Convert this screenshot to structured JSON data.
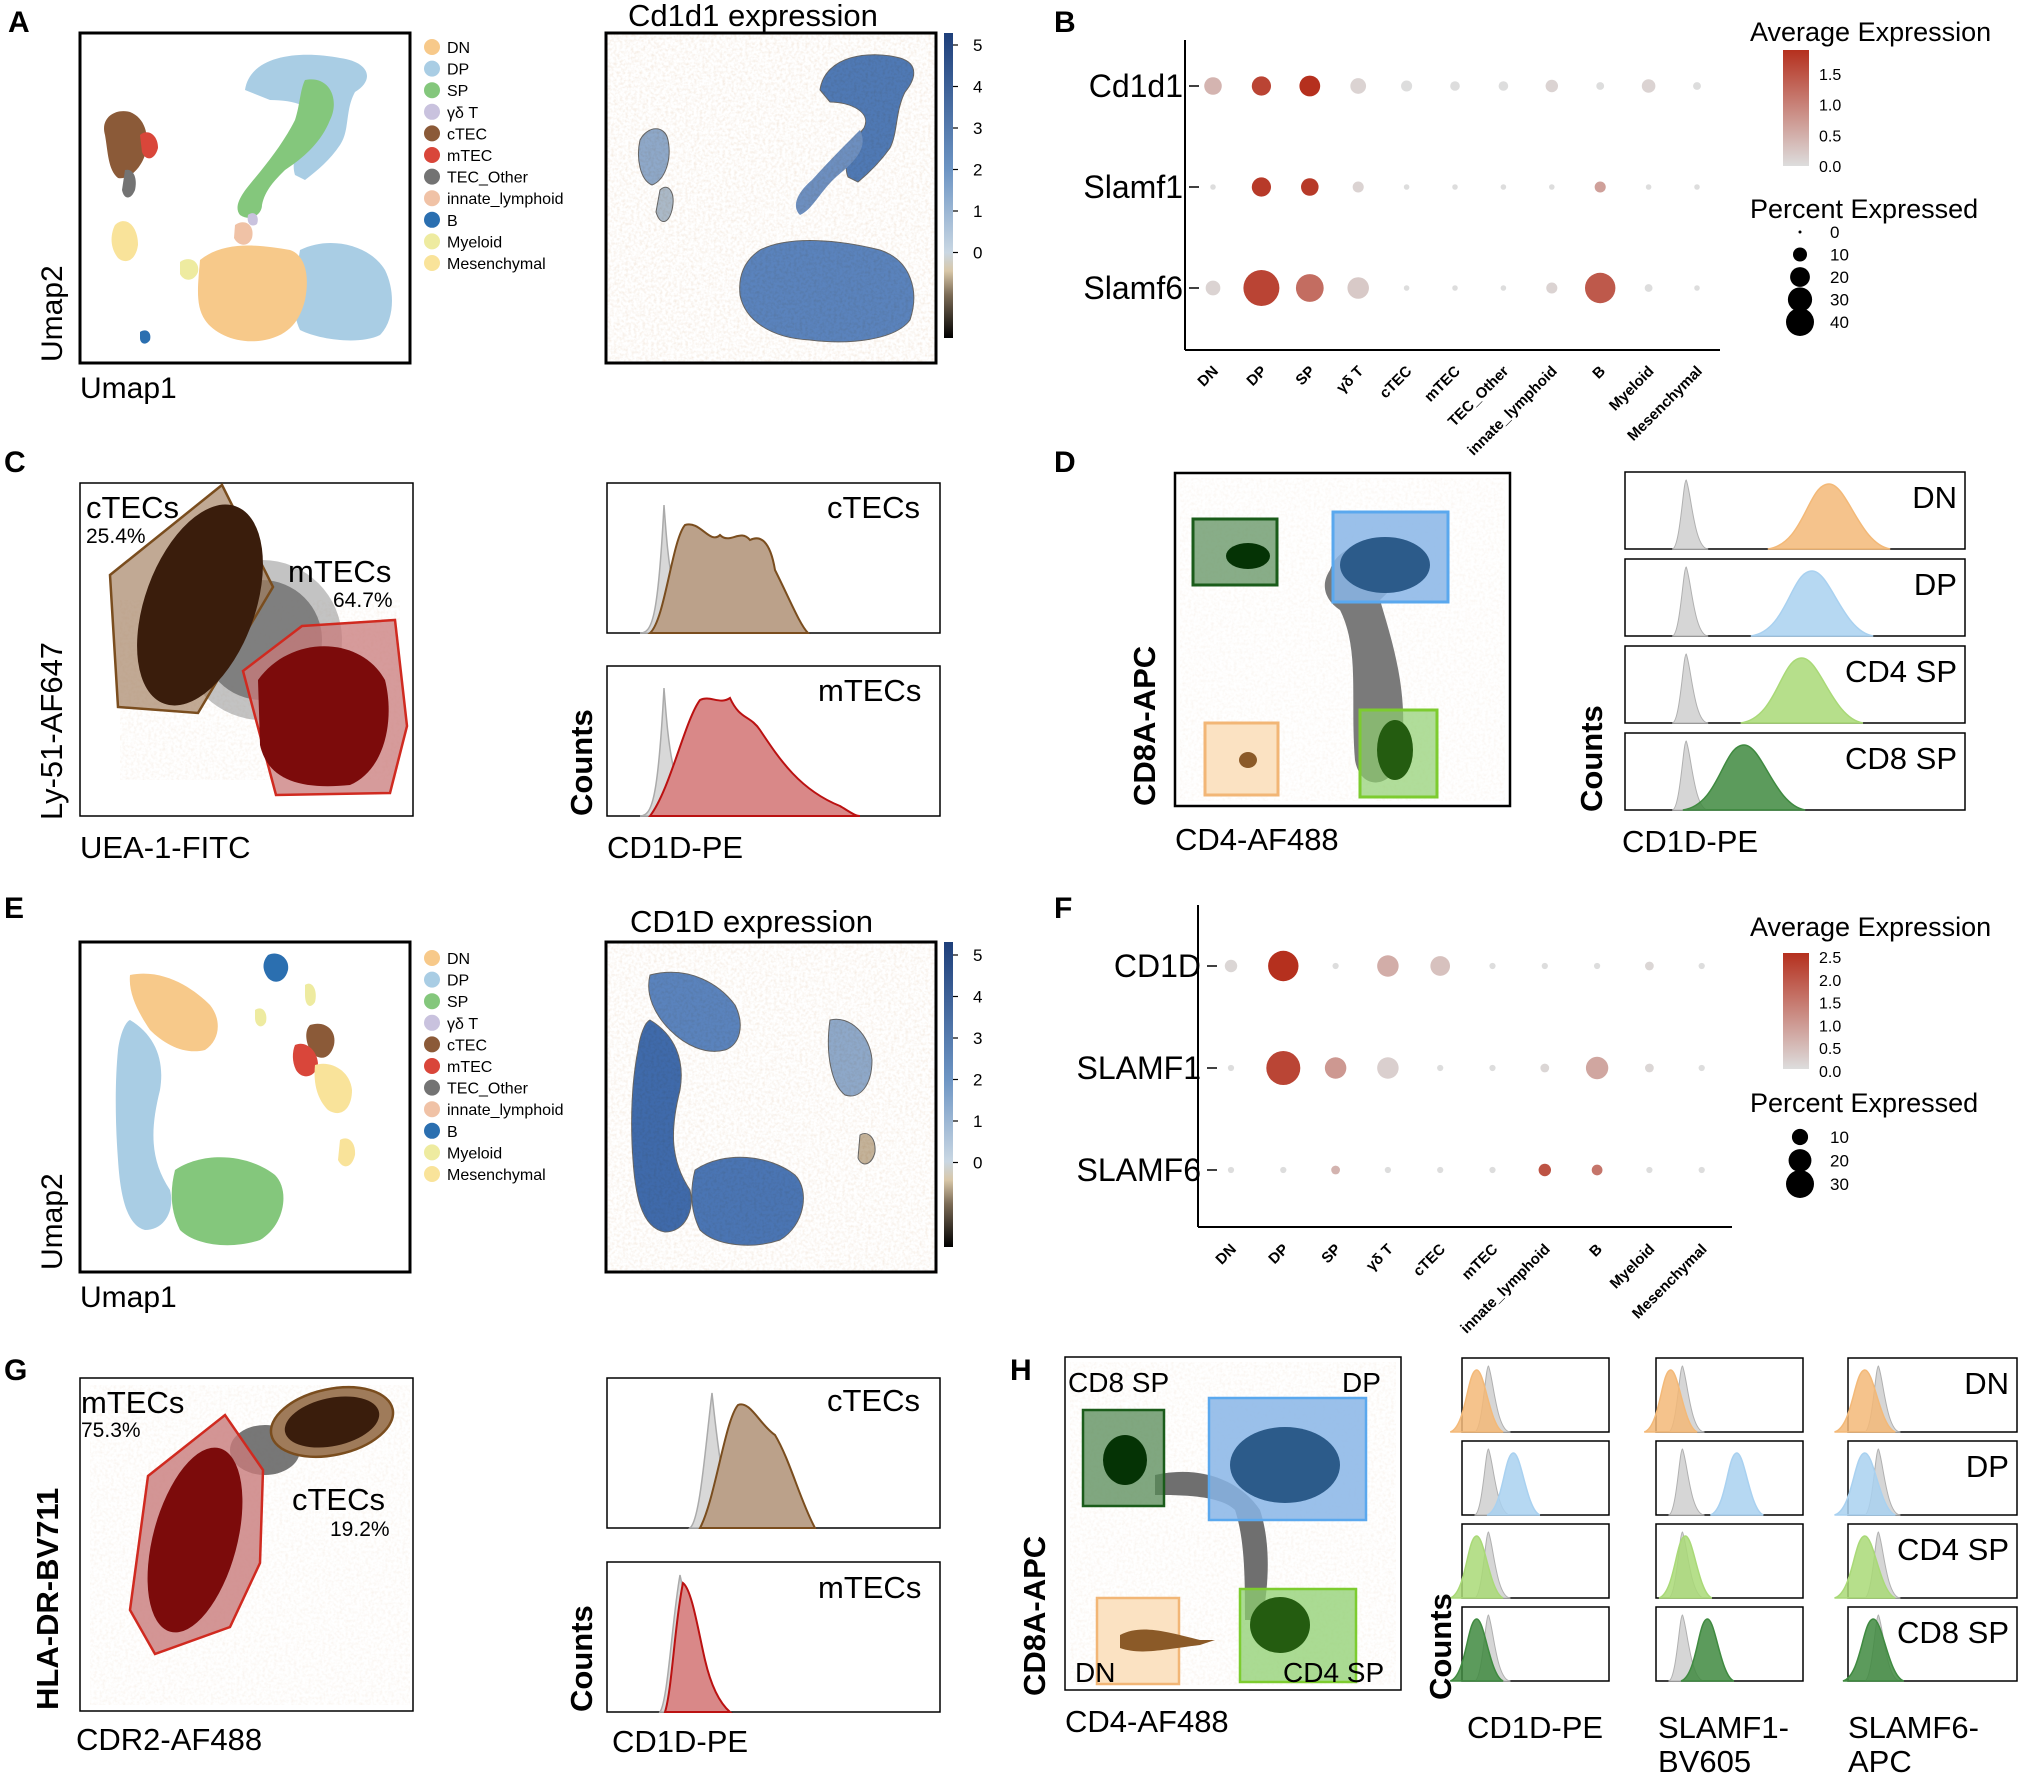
{
  "colors": {
    "DN": "#f7c98a",
    "DP": "#a9cde4",
    "SP": "#84c77c",
    "gdT": "#c9c2de",
    "cTEC": "#8b5a38",
    "mTEC": "#d9463a",
    "TEC_Other": "#737373",
    "innate": "#f0c2a6",
    "B": "#2b6fb0",
    "Myeloid": "#eeeba0",
    "Mesenchymal": "#f9e39a",
    "dot_low": "#d9d9d9",
    "dot_high": "#b5301e",
    "flow_dn": "#f3b978",
    "flow_dp": "#a9d1f0",
    "flow_cd4": "#a9d977",
    "flow_cd8": "#3f8a40",
    "ctec_hist": "#bba18a",
    "mtec_hist": "#d98888"
  },
  "panels": {
    "A": {
      "label": "A",
      "xlabel": "Umap1",
      "ylabel": "Umap2",
      "expr_title": "Cd1d1 expression",
      "scale_ticks": [
        "5",
        "4",
        "3",
        "2",
        "1",
        "0"
      ]
    },
    "B": {
      "label": "B",
      "avg_title": "Average Expression",
      "avg_ticks": [
        "1.5",
        "1.0",
        "0.5",
        "0.0"
      ],
      "pct_title": "Percent Expressed",
      "pct_ticks": [
        "0",
        "10",
        "20",
        "30",
        "40"
      ]
    },
    "C": {
      "label": "C",
      "gate1": "cTECs",
      "gate1_pct": "25.4%",
      "gate2": "mTECs",
      "gate2_pct": "64.7%",
      "xlabel": "UEA-1-FITC",
      "ylabel": "Ly-51-AF647",
      "hist_top": "cTECs",
      "hist_bottom": "mTECs",
      "hist_x": "CD1D-PE",
      "hist_y": "Counts"
    },
    "D": {
      "label": "D",
      "xlabel": "CD4-AF488",
      "ylabel": "CD8A-APC",
      "hist_labels": [
        "DN",
        "DP",
        "CD4 SP",
        "CD8 SP"
      ],
      "hist_x": "CD1D-PE",
      "hist_y": "Counts"
    },
    "E": {
      "label": "E",
      "xlabel": "Umap1",
      "ylabel": "Umap2",
      "expr_title": "CD1D expression",
      "scale_ticks": [
        "5",
        "4",
        "3",
        "2",
        "1",
        "0"
      ]
    },
    "F": {
      "label": "F",
      "avg_title": "Average Expression",
      "avg_ticks": [
        "2.5",
        "2.0",
        "1.5",
        "1.0",
        "0.5",
        "0.0"
      ],
      "pct_title": "Percent Expressed",
      "pct_ticks": [
        "10",
        "20",
        "30"
      ]
    },
    "G": {
      "label": "G",
      "gate1": "mTECs",
      "gate1_pct": "75.3%",
      "gate2": "cTECs",
      "gate2_pct": "19.2%",
      "xlabel": "CDR2-AF488",
      "ylabel": "HLA-DR-BV711",
      "hist_top": "cTECs",
      "hist_bottom": "mTECs",
      "hist_x": "CD1D-PE",
      "hist_y": "Counts"
    },
    "H": {
      "label": "H",
      "q_cd8": "CD8 SP",
      "q_dp": "DP",
      "q_dn": "DN",
      "q_cd4": "CD4 SP",
      "xlabel": "CD4-AF488",
      "ylabel": "CD8A-APC",
      "hist_labels": [
        "DN",
        "DP",
        "CD4 SP",
        "CD8 SP"
      ],
      "col1": "CD1D-PE",
      "col2a": "SLAMF1-",
      "col2b": "BV605",
      "col3a": "SLAMF6-",
      "col3b": "APC",
      "hist_y": "Counts"
    }
  },
  "legend": [
    {
      "label": "DN",
      "color": "#f7c98a"
    },
    {
      "label": "DP",
      "color": "#a9cde4"
    },
    {
      "label": "SP",
      "color": "#84c77c"
    },
    {
      "label": "γδ T",
      "color": "#c9c2de"
    },
    {
      "label": "cTEC",
      "color": "#8b5a38"
    },
    {
      "label": "mTEC",
      "color": "#d9463a"
    },
    {
      "label": "TEC_Other",
      "color": "#737373"
    },
    {
      "label": "innate_lymphoid",
      "color": "#f0c2a6"
    },
    {
      "label": "B",
      "color": "#2b6fb0"
    },
    {
      "label": "Myeloid",
      "color": "#eeeba0"
    },
    {
      "label": "Mesenchymal",
      "color": "#f9e39a"
    }
  ],
  "chart_data": [
    {
      "type": "scatter",
      "subtype": "dot_plot",
      "panel": "B",
      "genes": [
        "Cd1d1",
        "Slamf1",
        "Slamf6"
      ],
      "categories": [
        "DN",
        "DP",
        "SP",
        "γδ T",
        "cTEC",
        "mTEC",
        "TEC_Other",
        "innate_lymphoid",
        "B",
        "Myeloid",
        "Mesenchymal"
      ],
      "avg_expression": [
        [
          0.4,
          1.5,
          1.7,
          0.1,
          0.0,
          0.0,
          0.0,
          0.1,
          0.0,
          0.1,
          0.0
        ],
        [
          0.0,
          1.6,
          1.6,
          0.1,
          0.0,
          0.0,
          0.0,
          0.0,
          0.6,
          0.0,
          0.0
        ],
        [
          0.1,
          1.5,
          1.1,
          0.2,
          0.0,
          0.0,
          0.0,
          0.1,
          1.3,
          0.0,
          0.0
        ]
      ],
      "pct_expressed": [
        [
          10,
          12,
          14,
          8,
          4,
          3,
          3,
          5,
          2,
          6,
          2
        ],
        [
          1,
          12,
          10,
          4,
          1,
          1,
          1,
          1,
          4,
          1,
          1
        ],
        [
          7,
          42,
          25,
          15,
          1,
          1,
          1,
          4,
          30,
          2,
          1
        ]
      ],
      "legend_avg_title": "Average Expression",
      "legend_pct_title": "Percent Expressed"
    },
    {
      "type": "scatter",
      "subtype": "dot_plot",
      "panel": "F",
      "genes": [
        "CD1D",
        "SLAMF1",
        "SLAMF6"
      ],
      "categories": [
        "DN",
        "DP",
        "SP",
        "γδ T",
        "cTEC",
        "mTEC",
        "innate_lymphoid",
        "B",
        "Myeloid",
        "Mesenchymal"
      ],
      "avg_expression": [
        [
          0.1,
          2.5,
          0.0,
          0.7,
          0.4,
          0.0,
          0.0,
          0.0,
          0.1,
          0.0
        ],
        [
          0.0,
          2.2,
          1.0,
          0.2,
          0.0,
          0.0,
          0.1,
          0.8,
          0.1,
          0.0
        ],
        [
          0.0,
          0.0,
          0.6,
          0.0,
          0.0,
          0.0,
          2.0,
          1.5,
          0.0,
          0.0
        ]
      ],
      "pct_expressed": [
        [
          4,
          24,
          1,
          12,
          10,
          1,
          1,
          1,
          2,
          1
        ],
        [
          1,
          30,
          12,
          12,
          1,
          1,
          2,
          13,
          2,
          1
        ],
        [
          1,
          1,
          2,
          1,
          1,
          1,
          4,
          3,
          1,
          1
        ]
      ],
      "legend_avg_title": "Average Expression",
      "legend_pct_title": "Percent Expressed"
    }
  ]
}
